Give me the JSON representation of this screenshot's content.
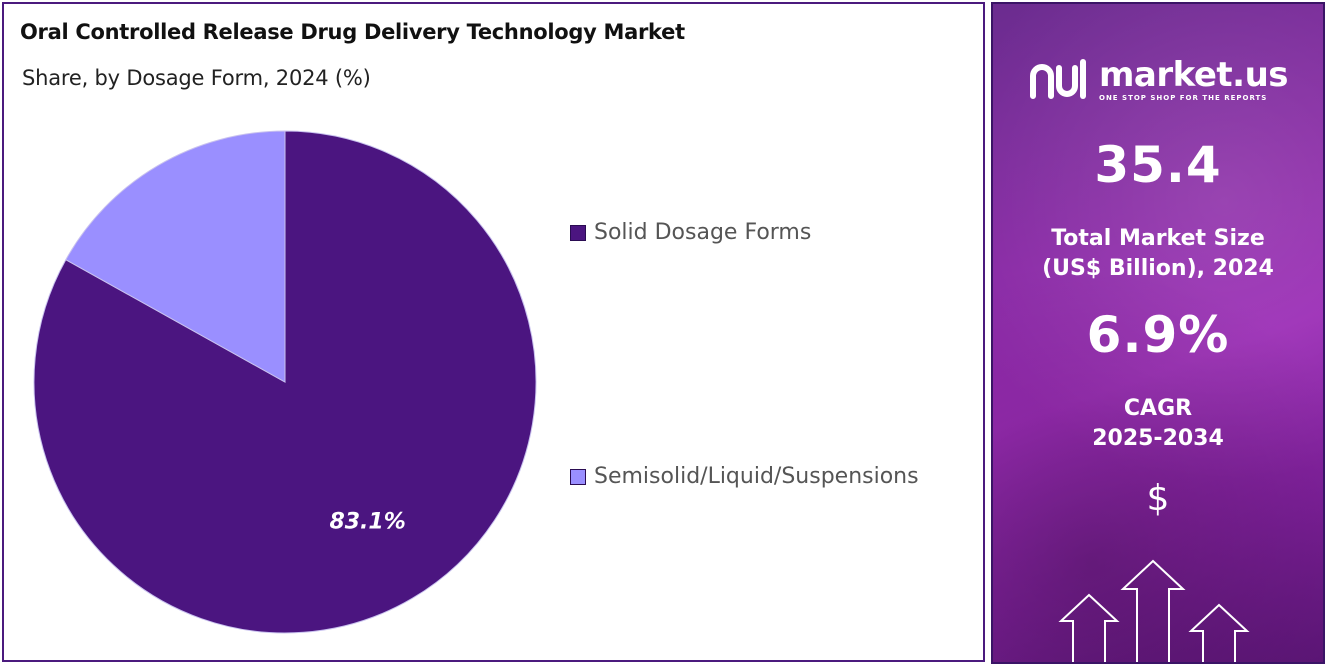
{
  "chart_data": {
    "type": "pie",
    "title": "Oral Controlled Release Drug Delivery Technology Market",
    "subtitle": "Share, by Dosage Form, 2024 (%)",
    "categories": [
      "Solid Dosage Forms",
      "Semisolid/Liquid/Suspensions"
    ],
    "values": [
      83.1,
      16.9
    ],
    "colors": [
      "#4b1580",
      "#9a8fff"
    ],
    "data_labels": [
      "83.1%",
      ""
    ],
    "legend_position": "right"
  },
  "sidebar": {
    "brand_name": "market.us",
    "brand_tagline": "ONE STOP SHOP FOR THE REPORTS",
    "market_size_value": "35.4",
    "market_size_label_1": "Total Market Size",
    "market_size_label_2": "(US$ Billion), 2024",
    "cagr_value": "6.9%",
    "cagr_label_1": "CAGR",
    "cagr_label_2": "2025-2034",
    "currency_symbol": "$",
    "icons": [
      "market-us-logo-icon",
      "dollar-icon",
      "growth-arrows-icon"
    ]
  }
}
